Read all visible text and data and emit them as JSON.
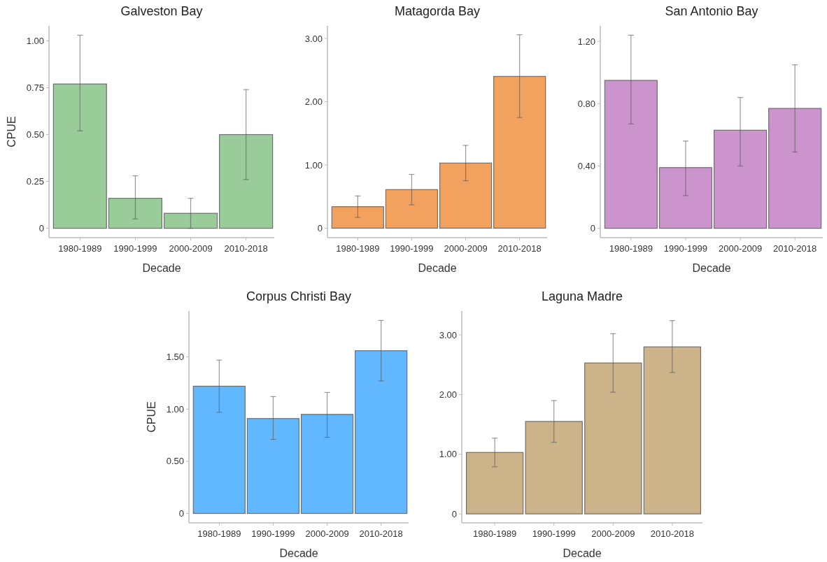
{
  "chart_data": [
    {
      "type": "bar",
      "title": "Galveston Bay",
      "xlabel": "Decade",
      "ylabel": "CPUE",
      "categories": [
        "1980-1989",
        "1990-1999",
        "2000-2009",
        "2010-2018"
      ],
      "values": [
        0.77,
        0.16,
        0.08,
        0.5
      ],
      "errors": [
        [
          0.52,
          1.03
        ],
        [
          0.05,
          0.28
        ],
        [
          0,
          0.16
        ],
        [
          0.26,
          0.74
        ]
      ],
      "color": "#99cc99",
      "ylim": [
        -0.05,
        1.08
      ],
      "yticks": [
        0,
        0.25,
        {
          "value": 0.5,
          "label": "0.50"
        },
        0.75,
        {
          "value": 1,
          "label": "1.00"
        }
      ],
      "grid": false
    },
    {
      "type": "bar",
      "title": "Matagorda Bay",
      "xlabel": "Decade",
      "categories": [
        "1980-1989",
        "1990-1999",
        "2000-2009",
        "2010-2018"
      ],
      "values": [
        0.34,
        0.61,
        1.03,
        2.4
      ],
      "errors": [
        [
          0.17,
          0.51
        ],
        [
          0.37,
          0.85
        ],
        [
          0.75,
          1.31
        ],
        [
          1.75,
          3.06
        ]
      ],
      "color": "#f2a25e",
      "ylim": [
        -0.15,
        3.2
      ],
      "yticks": [
        0,
        {
          "value": 1,
          "label": "1.00"
        },
        {
          "value": 2,
          "label": "2.00"
        },
        {
          "value": 3,
          "label": "3.00"
        }
      ],
      "grid": false
    },
    {
      "type": "bar",
      "title": "San Antonio Bay",
      "xlabel": "Decade",
      "categories": [
        "1980-1989",
        "1990-1999",
        "2000-2009",
        "2010-2018"
      ],
      "values": [
        0.95,
        0.39,
        0.63,
        0.77
      ],
      "errors": [
        [
          0.67,
          1.24
        ],
        [
          0.21,
          0.56
        ],
        [
          0.4,
          0.84
        ],
        [
          0.49,
          1.05
        ]
      ],
      "color": "#cc94cc",
      "ylim": [
        -0.06,
        1.3
      ],
      "yticks": [
        0,
        {
          "value": 0.4,
          "label": "0.40"
        },
        {
          "value": 0.8,
          "label": "0.80"
        },
        {
          "value": 1.2,
          "label": "1.20"
        }
      ],
      "grid": false
    },
    {
      "type": "bar",
      "title": "Corpus Christi Bay",
      "xlabel": "Decade",
      "ylabel": "CPUE",
      "categories": [
        "1980-1989",
        "1990-1999",
        "2000-2009",
        "2010-2018"
      ],
      "values": [
        1.22,
        0.91,
        0.95,
        1.56
      ],
      "errors": [
        [
          0.97,
          1.47
        ],
        [
          0.71,
          1.12
        ],
        [
          0.73,
          1.16
        ],
        [
          1.27,
          1.85
        ]
      ],
      "color": "#61b8ff",
      "ylim": [
        -0.09,
        1.94
      ],
      "yticks": [
        0,
        {
          "value": 0.5,
          "label": "0.50"
        },
        {
          "value": 1,
          "label": "1.00"
        },
        {
          "value": 1.5,
          "label": "1.50"
        }
      ],
      "grid": false
    },
    {
      "type": "bar",
      "title": "Laguna Madre",
      "xlabel": "Decade",
      "categories": [
        "1980-1989",
        "1990-1999",
        "2000-2009",
        "2010-2018"
      ],
      "values": [
        1.03,
        1.55,
        2.53,
        2.8
      ],
      "errors": [
        [
          0.79,
          1.27
        ],
        [
          1.2,
          1.9
        ],
        [
          2.04,
          3.02
        ],
        [
          2.37,
          3.24
        ]
      ],
      "color": "#ccb38a",
      "ylim": [
        -0.15,
        3.4
      ],
      "yticks": [
        0,
        {
          "value": 1,
          "label": "1.00"
        },
        {
          "value": 2,
          "label": "2.00"
        },
        {
          "value": 3,
          "label": "3.00"
        }
      ],
      "grid": false
    }
  ]
}
